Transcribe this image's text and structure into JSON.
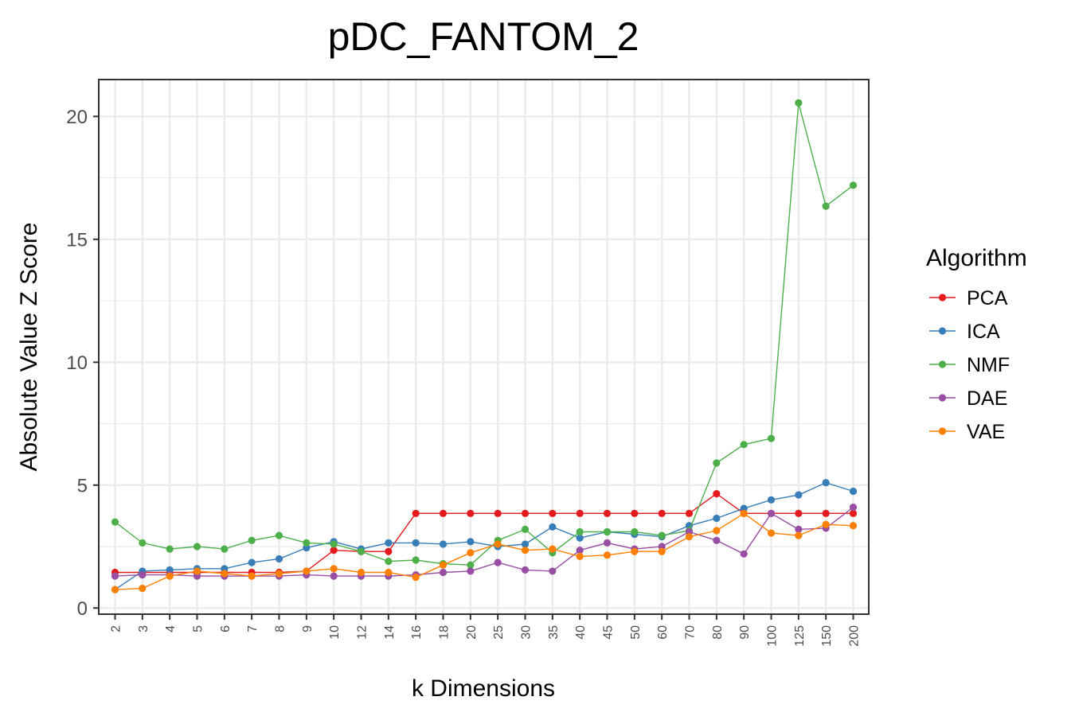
{
  "chart_data": {
    "type": "line",
    "title": "pDC_FANTOM_2",
    "xlabel": "k Dimensions",
    "ylabel": "Absolute Value Z Score",
    "categories": [
      "2",
      "3",
      "4",
      "5",
      "6",
      "7",
      "8",
      "9",
      "10",
      "12",
      "14",
      "16",
      "18",
      "20",
      "25",
      "30",
      "35",
      "40",
      "45",
      "50",
      "60",
      "70",
      "80",
      "90",
      "100",
      "125",
      "150",
      "200"
    ],
    "yticks": [
      0,
      5,
      10,
      15,
      20
    ],
    "ylim": [
      -0.25,
      21.5
    ],
    "grid": true,
    "legend": {
      "title": "Algorithm",
      "position": "right"
    },
    "series": [
      {
        "name": "PCA",
        "color": "#e41a1c",
        "values": [
          1.45,
          1.45,
          1.45,
          1.45,
          1.45,
          1.45,
          1.45,
          1.5,
          2.35,
          2.3,
          2.3,
          3.85,
          3.85,
          3.85,
          3.85,
          3.85,
          3.85,
          3.85,
          3.85,
          3.85,
          3.85,
          3.85,
          4.65,
          3.85,
          3.85,
          3.85,
          3.85,
          3.85
        ]
      },
      {
        "name": "ICA",
        "color": "#377eb8",
        "values": [
          0.75,
          1.5,
          1.55,
          1.6,
          1.6,
          1.85,
          2.0,
          2.45,
          2.7,
          2.4,
          2.65,
          2.65,
          2.6,
          2.7,
          2.5,
          2.6,
          3.3,
          2.85,
          3.1,
          3.0,
          2.9,
          3.35,
          3.65,
          4.05,
          4.4,
          4.6,
          5.1,
          4.75
        ]
      },
      {
        "name": "NMF",
        "color": "#4daf4a",
        "values": [
          3.5,
          2.65,
          2.4,
          2.5,
          2.4,
          2.75,
          2.95,
          2.65,
          2.6,
          2.3,
          1.9,
          1.95,
          1.8,
          1.75,
          2.75,
          3.2,
          2.25,
          3.1,
          3.1,
          3.1,
          2.95,
          3.15,
          5.9,
          6.65,
          6.9,
          20.55,
          16.35,
          17.2
        ]
      },
      {
        "name": "DAE",
        "color": "#984ea3",
        "values": [
          1.3,
          1.35,
          1.35,
          1.3,
          1.3,
          1.3,
          1.3,
          1.35,
          1.3,
          1.3,
          1.3,
          1.35,
          1.45,
          1.5,
          1.85,
          1.55,
          1.5,
          2.35,
          2.65,
          2.4,
          2.5,
          3.1,
          2.75,
          2.2,
          3.85,
          3.2,
          3.25,
          4.1
        ]
      },
      {
        "name": "VAE",
        "color": "#ff7f00",
        "values": [
          0.75,
          0.8,
          1.3,
          1.5,
          1.4,
          1.3,
          1.4,
          1.5,
          1.6,
          1.45,
          1.45,
          1.25,
          1.75,
          2.25,
          2.6,
          2.35,
          2.4,
          2.1,
          2.15,
          2.3,
          2.3,
          2.9,
          3.15,
          3.85,
          3.05,
          2.95,
          3.4,
          3.35
        ]
      }
    ]
  }
}
